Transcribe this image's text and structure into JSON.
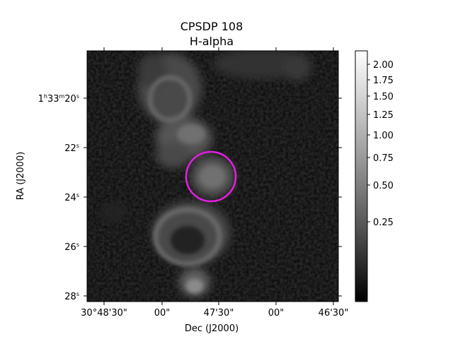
{
  "figure": {
    "title_line1": "CPSDP 108",
    "title_line2": "H-alpha"
  },
  "axes": {
    "xlabel": "Dec (J2000)",
    "ylabel": "RA (J2000)",
    "x_ticks": [
      "30°48'30\"",
      "00\"",
      "47'30\"",
      "00\"",
      "46'30\""
    ],
    "y_ticks": [
      {
        "base": "1",
        "h": "h",
        "m_val": "33",
        "m": "m",
        "s_val": "20",
        "s": "s"
      },
      {
        "base": "22",
        "s": "s"
      },
      {
        "base": "24",
        "s": "s"
      },
      {
        "base": "26",
        "s": "s"
      },
      {
        "base": "28",
        "s": "s"
      }
    ]
  },
  "colorbar": {
    "ticks": [
      "2.00",
      "1.75",
      "1.50",
      "1.25",
      "1.00",
      "0.75",
      "0.50",
      "0.25"
    ]
  },
  "overlay": {
    "marker": "circle",
    "color": "#e41ee4"
  },
  "colors": {
    "image_bg": "#050505",
    "frame": "#000000"
  }
}
